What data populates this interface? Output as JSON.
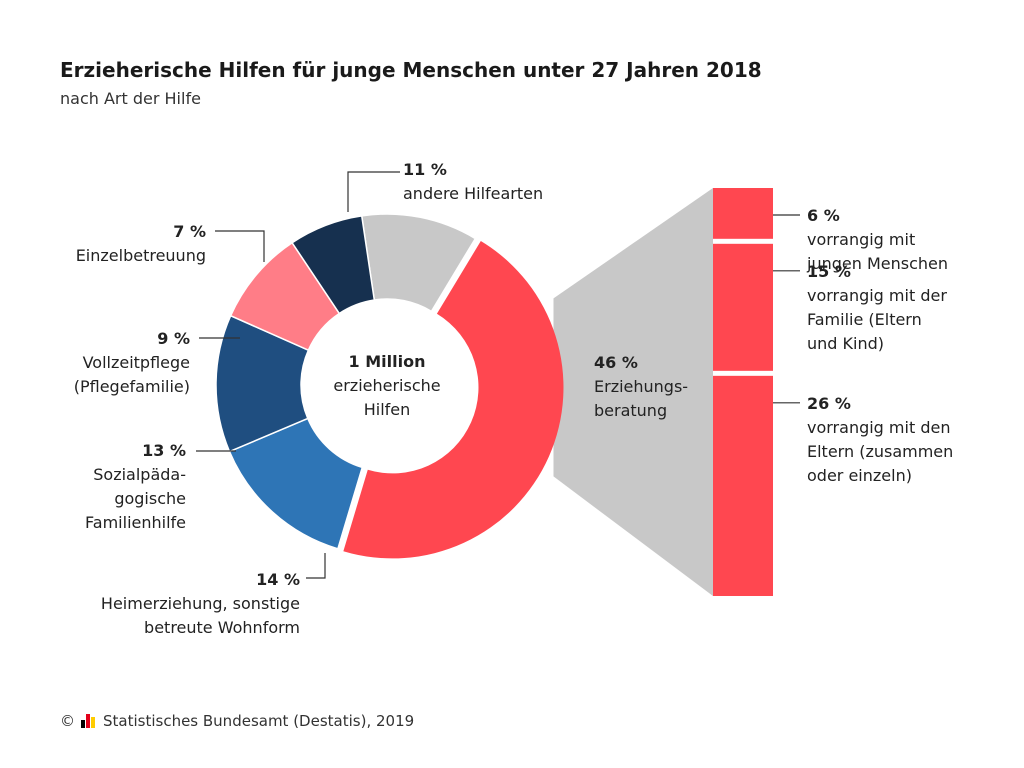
{
  "title": "Erzieherische Hilfen für junge Menschen unter 27 Jahren 2018",
  "subtitle": "nach Art der Hilfe",
  "footer": {
    "copyright_symbol": "©",
    "source": "Statistisches Bundesamt (Destatis), 2019",
    "logo_icon": "destatis-logo-icon",
    "logo_colors": [
      "#000000",
      "#e3001b",
      "#ffcc00"
    ]
  },
  "chart_data": [
    {
      "type": "pie",
      "variant": "donut",
      "title": "Erzieherische Hilfen für junge Menschen unter 27 Jahren 2018",
      "center_label": [
        "1 Million",
        "erzieherische",
        "Hilfen"
      ],
      "slices": [
        {
          "name": "andere Hilfearten",
          "value": 11,
          "pct_label": "11 %",
          "label_lines": [
            "andere Hilfearten"
          ],
          "color": "#c8c8c8"
        },
        {
          "name": "Erziehungsberatung",
          "value": 46,
          "pct_label": "46 %",
          "label_lines": [
            "Erziehungs-",
            "beratung"
          ],
          "color": "#ff4750",
          "exploded": true
        },
        {
          "name": "Heimerziehung, sonstige betreute Wohnform",
          "value": 14,
          "pct_label": "14 %",
          "label_lines": [
            "Heimerziehung, sonstige",
            "betreute Wohnform"
          ],
          "color": "#2e75b6"
        },
        {
          "name": "Sozialpädagogische Familienhilfe",
          "value": 13,
          "pct_label": "13 %",
          "label_lines": [
            "Sozialpäda-",
            "gogische",
            "Familienhilfe"
          ],
          "color": "#1f4e80"
        },
        {
          "name": "Vollzeitpflege (Pflegefamilie)",
          "value": 9,
          "pct_label": "9 %",
          "label_lines": [
            "Vollzeitpflege",
            "(Pflegefamilie)"
          ],
          "color": "#ff7d87"
        },
        {
          "name": "Einzelbetreuung",
          "value": 7,
          "pct_label": "7 %",
          "label_lines": [
            "Einzelbetreuung"
          ],
          "color": "#16304f"
        }
      ]
    },
    {
      "type": "bar",
      "variant": "stacked-column",
      "parent": "Erziehungsberatung",
      "connector_color": "#c8c8c8",
      "segments": [
        {
          "name": "vorrangig mit jungen Menschen",
          "value": 6,
          "pct_label": "6 %",
          "label_lines": [
            "vorrangig mit",
            "jungen Menschen"
          ],
          "color": "#ff4750"
        },
        {
          "name": "vorrangig mit der Familie (Eltern und Kind)",
          "value": 15,
          "pct_label": "15 %",
          "label_lines": [
            "vorrangig mit der",
            "Familie (Eltern",
            "und Kind)"
          ],
          "color": "#ff4750"
        },
        {
          "name": "vorrangig mit den Eltern (zusammen oder einzeln)",
          "value": 26,
          "pct_label": "26 %",
          "label_lines": [
            "vorrangig mit den",
            "Eltern (zusammen",
            "oder einzeln)"
          ],
          "color": "#ff4750"
        }
      ]
    }
  ]
}
